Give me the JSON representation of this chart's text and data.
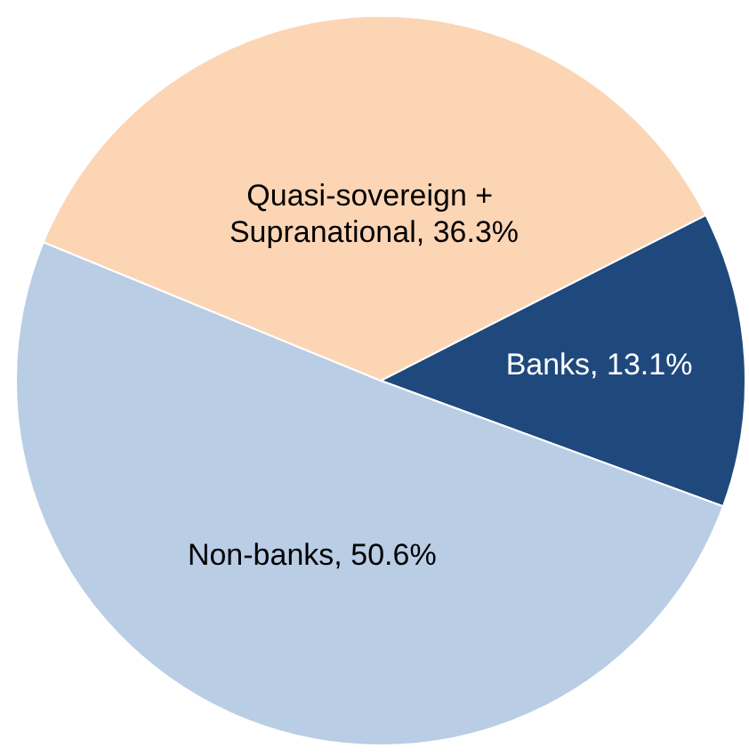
{
  "chart_data": {
    "type": "pie",
    "categories": [
      "Banks",
      "Non-banks",
      "Quasi-sovereign + Supranational"
    ],
    "values": [
      13.1,
      50.6,
      36.3
    ],
    "value_labels": [
      "13.1%",
      "50.6%",
      "36.3%"
    ],
    "colors": [
      "#1f497d",
      "#b9cde5",
      "#fcd5b5"
    ]
  }
}
